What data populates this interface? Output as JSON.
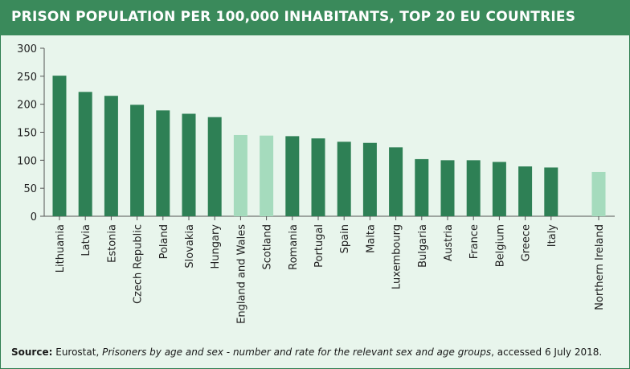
{
  "header": {
    "title": "PRISON POPULATION PER 100,000 INHABITANTS, TOP 20 EU COUNTRIES"
  },
  "source": {
    "label": "Source:",
    "prefix": "Eurostat, ",
    "italic": "Prisoners by age and sex - number and rate for the relevant sex and age groups",
    "suffix": ", accessed  6 July 2018."
  },
  "colors": {
    "header_bg": "#3a8a5b",
    "panel_bg": "#e8f5ec",
    "bar_dark": "#2e8055",
    "bar_light": "#a5dbbd",
    "axis": "#555555"
  },
  "chart_data": {
    "type": "bar",
    "title": "PRISON POPULATION PER 100,000 INHABITANTS, TOP 20 EU COUNTRIES",
    "xlabel": "",
    "ylabel": "",
    "ylim": [
      0,
      300
    ],
    "yticks": [
      0,
      50,
      100,
      150,
      200,
      250,
      300
    ],
    "grid": false,
    "categories": [
      "Lithuania",
      "Latvia",
      "Estonia",
      "Czech Republic",
      "Poland",
      "Slovakia",
      "Hungary",
      "England and Wales",
      "Scotland",
      "Romania",
      "Portugal",
      "Spain",
      "Malta",
      "Luxembourg",
      "Bulgaria",
      "Austria",
      "France",
      "Belgium",
      "Greece",
      "Italy",
      "Northern Ireland"
    ],
    "values": [
      251,
      222,
      215,
      199,
      189,
      183,
      177,
      145,
      144,
      143,
      139,
      133,
      131,
      123,
      102,
      100,
      100,
      97,
      89,
      87,
      79
    ],
    "highlight": [
      false,
      false,
      false,
      false,
      false,
      false,
      false,
      true,
      true,
      false,
      false,
      false,
      false,
      false,
      false,
      false,
      false,
      false,
      false,
      false,
      true
    ]
  }
}
